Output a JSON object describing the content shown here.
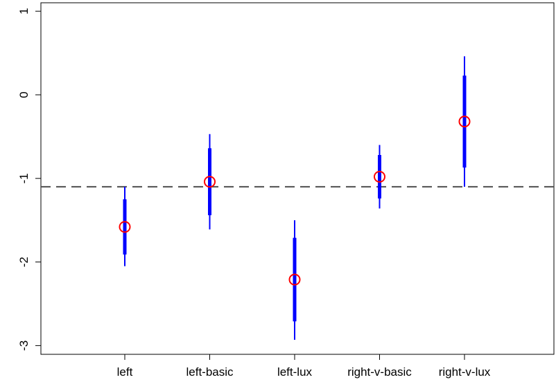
{
  "chart_data": {
    "type": "errorbar",
    "title": "",
    "xlabel": "",
    "ylabel": "",
    "categories": [
      "left",
      "left-basic",
      "left-lux",
      "right-v-basic",
      "right-v-lux"
    ],
    "estimates": [
      -1.58,
      -1.04,
      -2.21,
      -0.98,
      -0.32
    ],
    "inner_interval": [
      [
        -1.91,
        -1.25
      ],
      [
        -1.44,
        -0.64
      ],
      [
        -2.71,
        -1.71
      ],
      [
        -1.24,
        -0.72
      ],
      [
        -0.87,
        0.23
      ]
    ],
    "outer_interval": [
      [
        -2.05,
        -1.1
      ],
      [
        -1.61,
        -0.47
      ],
      [
        -2.93,
        -1.5
      ],
      [
        -1.36,
        -0.6
      ],
      [
        -1.1,
        0.46
      ]
    ],
    "reference_line": -1.1,
    "y_ticks": [
      1,
      0,
      -1,
      -2,
      -3
    ],
    "y_tick_labels": [
      "1",
      "0",
      "-1",
      "-2",
      "-3"
    ],
    "ylim": [
      -3.1,
      1.1
    ],
    "grid": false,
    "colors": {
      "interval": "#0000ff",
      "point": "#ff0000",
      "reference_line": "#4d4d4d",
      "axes": "#000000"
    }
  }
}
